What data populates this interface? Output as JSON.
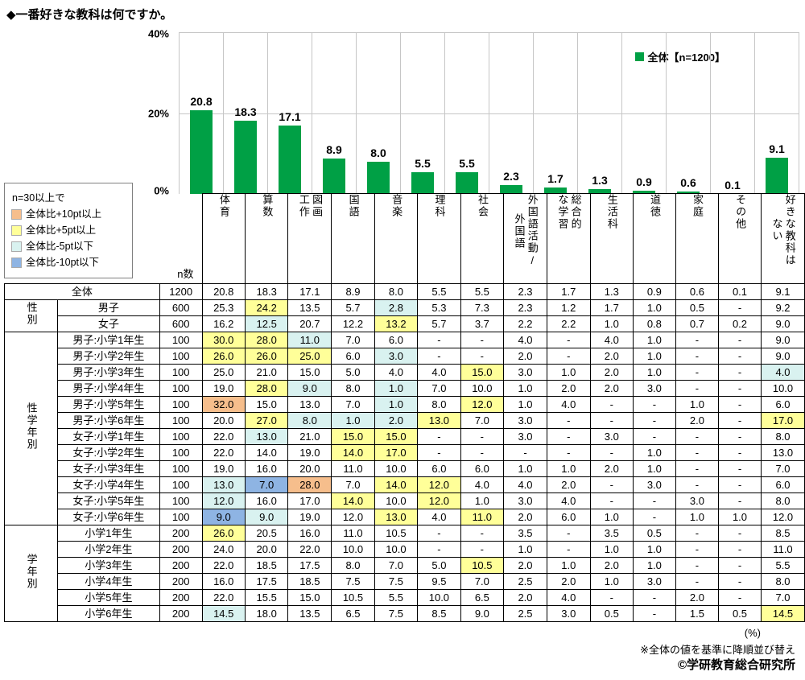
{
  "title": "◆一番好きな教科は何ですか。",
  "chart_data": {
    "type": "bar",
    "title": "一番好きな教科は何ですか。",
    "categories": [
      "体育",
      "算数",
      "図画工作",
      "国語",
      "音楽",
      "理科",
      "社会",
      "外国語活動/外国語",
      "総合的な学習",
      "生活科",
      "道徳",
      "家庭",
      "その他",
      "好きな教科はない"
    ],
    "series": [
      {
        "name": "全体【n=1200】",
        "values": [
          20.8,
          18.3,
          17.1,
          8.9,
          8.0,
          5.5,
          5.5,
          2.3,
          1.7,
          1.3,
          0.9,
          0.6,
          0.1,
          9.1
        ]
      }
    ],
    "ylabel": "%",
    "ylim": [
      0,
      40
    ],
    "yticks": [
      0,
      20,
      40
    ],
    "ytick_labels": [
      "40%",
      "20%",
      "0%"
    ],
    "grid": true,
    "legend_position": "top-right",
    "bar_color": "#00A045"
  },
  "highlight_colors": {
    "plus10": "#F6BE8C",
    "plus5": "#FFFF99",
    "minus5": "#D9F2F0",
    "minus10": "#8EB4E3"
  },
  "threshold_legend": {
    "header": "n=30以上で",
    "items": [
      {
        "color_key": "plus10",
        "label": "全体比+10pt以上"
      },
      {
        "color_key": "plus5",
        "label": "全体比+5pt以上"
      },
      {
        "color_key": "minus5",
        "label": "全体比-5pt以下"
      },
      {
        "color_key": "minus10",
        "label": "全体比-10pt以下"
      }
    ]
  },
  "table": {
    "n_label": "n数",
    "columns": [
      "体育",
      "算数",
      "図画\n工作",
      "国語",
      "音楽",
      "理科",
      "社会",
      "外国語活動/\n外国語",
      "総合的\nな学習",
      "生活科",
      "道徳",
      "家庭",
      "その他",
      "好きな教科は\nない"
    ],
    "rows": [
      {
        "label": "全体",
        "label_colspan": 2,
        "n": "1200",
        "values": [
          "20.8",
          "18.3",
          "17.1",
          "8.9",
          "8.0",
          "5.5",
          "5.5",
          "2.3",
          "1.7",
          "1.3",
          "0.9",
          "0.6",
          "0.1",
          "9.1"
        ],
        "hl": {}
      },
      {
        "group": "性別",
        "group_rowspan": 2,
        "label": "男子",
        "n": "600",
        "values": [
          "25.3",
          "24.2",
          "13.5",
          "5.7",
          "2.8",
          "5.3",
          "7.3",
          "2.3",
          "1.2",
          "1.7",
          "1.0",
          "0.5",
          "-",
          "9.2"
        ],
        "hl": {
          "1": "plus5",
          "4": "minus5"
        }
      },
      {
        "label": "女子",
        "n": "600",
        "values": [
          "16.2",
          "12.5",
          "20.7",
          "12.2",
          "13.2",
          "5.7",
          "3.7",
          "2.2",
          "2.2",
          "1.0",
          "0.8",
          "0.7",
          "0.2",
          "9.0"
        ],
        "hl": {
          "1": "minus5",
          "4": "plus5"
        }
      },
      {
        "group": "性学年別",
        "group_rowspan": 12,
        "label": "男子:小学1年生",
        "n": "100",
        "values": [
          "30.0",
          "28.0",
          "11.0",
          "7.0",
          "6.0",
          "-",
          "-",
          "4.0",
          "-",
          "4.0",
          "1.0",
          "-",
          "-",
          "9.0"
        ],
        "hl": {
          "0": "plus5",
          "1": "plus5",
          "2": "minus5"
        }
      },
      {
        "label": "男子:小学2年生",
        "n": "100",
        "values": [
          "26.0",
          "26.0",
          "25.0",
          "6.0",
          "3.0",
          "-",
          "-",
          "2.0",
          "-",
          "2.0",
          "1.0",
          "-",
          "-",
          "9.0"
        ],
        "hl": {
          "0": "plus5",
          "1": "plus5",
          "2": "plus5",
          "4": "minus5"
        }
      },
      {
        "label": "男子:小学3年生",
        "n": "100",
        "values": [
          "25.0",
          "21.0",
          "15.0",
          "5.0",
          "4.0",
          "4.0",
          "15.0",
          "3.0",
          "1.0",
          "2.0",
          "1.0",
          "-",
          "-",
          "4.0"
        ],
        "hl": {
          "6": "plus5",
          "13": "minus5"
        }
      },
      {
        "label": "男子:小学4年生",
        "n": "100",
        "values": [
          "19.0",
          "28.0",
          "9.0",
          "8.0",
          "1.0",
          "7.0",
          "10.0",
          "1.0",
          "2.0",
          "2.0",
          "3.0",
          "-",
          "-",
          "10.0"
        ],
        "hl": {
          "1": "plus5",
          "2": "minus5",
          "4": "minus5"
        }
      },
      {
        "label": "男子:小学5年生",
        "n": "100",
        "values": [
          "32.0",
          "15.0",
          "13.0",
          "7.0",
          "1.0",
          "8.0",
          "12.0",
          "1.0",
          "4.0",
          "-",
          "-",
          "1.0",
          "-",
          "6.0"
        ],
        "hl": {
          "0": "plus10",
          "4": "minus5",
          "6": "plus5"
        }
      },
      {
        "label": "男子:小学6年生",
        "n": "100",
        "values": [
          "20.0",
          "27.0",
          "8.0",
          "1.0",
          "2.0",
          "13.0",
          "7.0",
          "3.0",
          "-",
          "-",
          "-",
          "2.0",
          "-",
          "17.0"
        ],
        "hl": {
          "1": "plus5",
          "2": "minus5",
          "3": "minus5",
          "4": "minus5",
          "5": "plus5",
          "13": "plus5"
        }
      },
      {
        "label": "女子:小学1年生",
        "n": "100",
        "values": [
          "22.0",
          "13.0",
          "21.0",
          "15.0",
          "15.0",
          "-",
          "-",
          "3.0",
          "-",
          "3.0",
          "-",
          "-",
          "-",
          "8.0"
        ],
        "hl": {
          "1": "minus5",
          "3": "plus5",
          "4": "plus5"
        }
      },
      {
        "label": "女子:小学2年生",
        "n": "100",
        "values": [
          "22.0",
          "14.0",
          "19.0",
          "14.0",
          "17.0",
          "-",
          "-",
          "-",
          "-",
          "-",
          "1.0",
          "-",
          "-",
          "13.0"
        ],
        "hl": {
          "3": "plus5",
          "4": "plus5"
        }
      },
      {
        "label": "女子:小学3年生",
        "n": "100",
        "values": [
          "19.0",
          "16.0",
          "20.0",
          "11.0",
          "10.0",
          "6.0",
          "6.0",
          "1.0",
          "1.0",
          "2.0",
          "1.0",
          "-",
          "-",
          "7.0"
        ],
        "hl": {}
      },
      {
        "label": "女子:小学4年生",
        "n": "100",
        "values": [
          "13.0",
          "7.0",
          "28.0",
          "7.0",
          "14.0",
          "12.0",
          "4.0",
          "4.0",
          "2.0",
          "-",
          "3.0",
          "-",
          "-",
          "6.0"
        ],
        "hl": {
          "0": "minus5",
          "1": "minus10",
          "2": "plus10",
          "4": "plus5",
          "5": "plus5"
        }
      },
      {
        "label": "女子:小学5年生",
        "n": "100",
        "values": [
          "12.0",
          "16.0",
          "17.0",
          "14.0",
          "10.0",
          "12.0",
          "1.0",
          "3.0",
          "4.0",
          "-",
          "-",
          "3.0",
          "-",
          "8.0"
        ],
        "hl": {
          "0": "minus5",
          "3": "plus5",
          "5": "plus5"
        }
      },
      {
        "label": "女子:小学6年生",
        "n": "100",
        "values": [
          "9.0",
          "9.0",
          "19.0",
          "12.0",
          "13.0",
          "4.0",
          "11.0",
          "2.0",
          "6.0",
          "1.0",
          "-",
          "1.0",
          "1.0",
          "12.0"
        ],
        "hl": {
          "0": "minus10",
          "1": "minus5",
          "4": "plus5",
          "6": "plus5"
        }
      },
      {
        "group": "学年別",
        "group_rowspan": 6,
        "label": "小学1年生",
        "n": "200",
        "values": [
          "26.0",
          "20.5",
          "16.0",
          "11.0",
          "10.5",
          "-",
          "-",
          "3.5",
          "-",
          "3.5",
          "0.5",
          "-",
          "-",
          "8.5"
        ],
        "hl": {
          "0": "plus5"
        }
      },
      {
        "label": "小学2年生",
        "n": "200",
        "values": [
          "24.0",
          "20.0",
          "22.0",
          "10.0",
          "10.0",
          "-",
          "-",
          "1.0",
          "-",
          "1.0",
          "1.0",
          "-",
          "-",
          "11.0"
        ],
        "hl": {}
      },
      {
        "label": "小学3年生",
        "n": "200",
        "values": [
          "22.0",
          "18.5",
          "17.5",
          "8.0",
          "7.0",
          "5.0",
          "10.5",
          "2.0",
          "1.0",
          "2.0",
          "1.0",
          "-",
          "-",
          "5.5"
        ],
        "hl": {
          "6": "plus5"
        }
      },
      {
        "label": "小学4年生",
        "n": "200",
        "values": [
          "16.0",
          "17.5",
          "18.5",
          "7.5",
          "7.5",
          "9.5",
          "7.0",
          "2.5",
          "2.0",
          "1.0",
          "3.0",
          "-",
          "-",
          "8.0"
        ],
        "hl": {}
      },
      {
        "label": "小学5年生",
        "n": "200",
        "values": [
          "22.0",
          "15.5",
          "15.0",
          "10.5",
          "5.5",
          "10.0",
          "6.5",
          "2.0",
          "4.0",
          "-",
          "-",
          "2.0",
          "-",
          "7.0"
        ],
        "hl": {}
      },
      {
        "label": "小学6年生",
        "n": "200",
        "values": [
          "14.5",
          "18.0",
          "13.5",
          "6.5",
          "7.5",
          "8.5",
          "9.0",
          "2.5",
          "3.0",
          "0.5",
          "-",
          "1.5",
          "0.5",
          "14.5"
        ],
        "hl": {
          "0": "minus5",
          "13": "plus5"
        }
      }
    ]
  },
  "footer": {
    "percent_label": "(%)",
    "sort_note": "※全体の値を基準に降順並び替え",
    "copyright": "©学研教育総合研究所"
  }
}
